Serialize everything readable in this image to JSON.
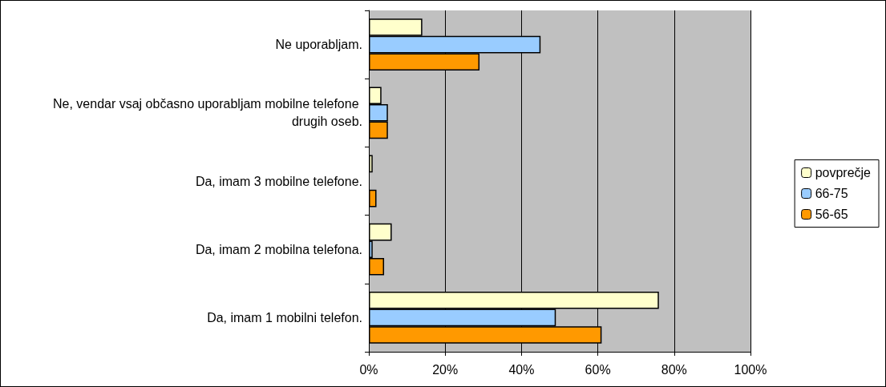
{
  "chart_data": {
    "type": "bar",
    "orientation": "horizontal",
    "categories": [
      "Ne uporabljam.",
      "Ne, vendar vsaj občasno uporabljam mobilne telefone drugih oseb.",
      "Da, imam 3 mobilne telefone.",
      "Da, imam 2 mobilna telefona.",
      "Da, imam 1 mobilni telefon."
    ],
    "series": [
      {
        "name": "povprečje",
        "color": "#ffffcc",
        "values": [
          14,
          3.3,
          1,
          6,
          76
        ]
      },
      {
        "name": "66-75",
        "color": "#99ccff",
        "values": [
          45,
          5,
          0,
          1,
          49
        ]
      },
      {
        "name": "56-65",
        "color": "#ff9900",
        "values": [
          29,
          5,
          2,
          4,
          61
        ]
      }
    ],
    "xlim": [
      0,
      100
    ],
    "xticks": [
      {
        "value": 0,
        "label": "0%"
      },
      {
        "value": 20,
        "label": "20%"
      },
      {
        "value": 40,
        "label": "40%"
      },
      {
        "value": 60,
        "label": "60%"
      },
      {
        "value": 80,
        "label": "80%"
      },
      {
        "value": 100,
        "label": "100%"
      }
    ],
    "grid": "x",
    "legend": "right"
  }
}
